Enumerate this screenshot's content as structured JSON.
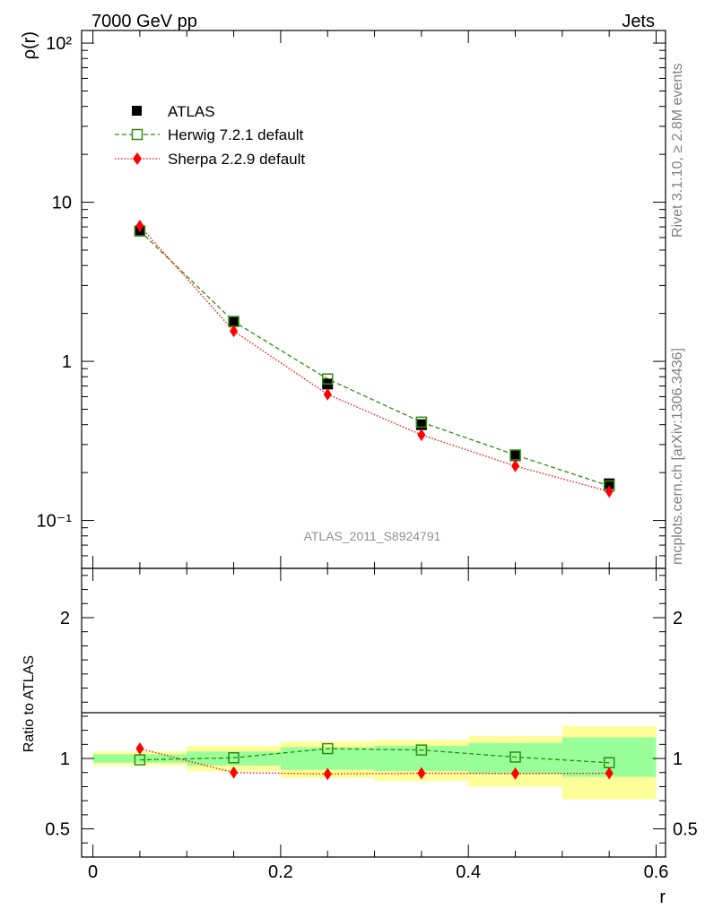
{
  "header": {
    "left": "7000 GeV pp",
    "right": "Jets"
  },
  "side_text": {
    "rivet": "Rivet 3.1.10, ≥ 2.8M events",
    "mcplots": "mcplots.cern.ch [arXiv:1306.3436]"
  },
  "watermark": "ATLAS_2011_S8924791",
  "colors": {
    "atlas": "#000000",
    "herwig": "#2e8b0e",
    "sherpa": "#ff0000",
    "band_outer": "#ffff99",
    "band_inner": "#99ff99"
  },
  "chart_data": [
    {
      "type": "scatter",
      "ylabel": "ρ(r)",
      "yscale": "log",
      "xlim": [
        -0.012,
        0.61
      ],
      "ylim": [
        0.05,
        120
      ],
      "yticks": [
        {
          "value": 0.1,
          "label": "10⁻¹"
        },
        {
          "value": 1,
          "label": "1"
        },
        {
          "value": 10,
          "label": "10"
        },
        {
          "value": 100,
          "label": "10²"
        }
      ],
      "legend": "top-left",
      "x": [
        0.05,
        0.15,
        0.25,
        0.35,
        0.45,
        0.55
      ],
      "series": [
        {
          "name": "ATLAS",
          "key": "atlas",
          "marker": "square-filled",
          "values": [
            6.6,
            1.78,
            0.72,
            0.4,
            0.255,
            0.17
          ]
        },
        {
          "name": "Herwig 7.2.1 default",
          "key": "herwig",
          "marker": "square-open",
          "line": "dashed",
          "values": [
            6.6,
            1.78,
            0.775,
            0.415,
            0.258,
            0.165
          ]
        },
        {
          "name": "Sherpa 2.2.9 default",
          "key": "sherpa",
          "marker": "diamond",
          "line": "dotted",
          "values": [
            7.1,
            1.55,
            0.62,
            0.345,
            0.22,
            0.152
          ]
        }
      ]
    },
    {
      "type": "scatter",
      "xlabel": "r",
      "ylabel": "Ratio to ATLAS",
      "xlim": [
        -0.012,
        0.61
      ],
      "ylim": [
        0.3,
        2.35
      ],
      "xticks": [
        {
          "value": 0,
          "label": "0"
        },
        {
          "value": 0.2,
          "label": "0.2"
        },
        {
          "value": 0.4,
          "label": "0.4"
        },
        {
          "value": 0.6,
          "label": "0.6"
        }
      ],
      "yticks": [
        {
          "value": 0.5,
          "label": "0.5"
        },
        {
          "value": 1,
          "label": "1"
        },
        {
          "value": 2,
          "label": "2"
        }
      ],
      "bins": [
        [
          0.0,
          0.1
        ],
        [
          0.1,
          0.2
        ],
        [
          0.2,
          0.3
        ],
        [
          0.3,
          0.4
        ],
        [
          0.4,
          0.5
        ],
        [
          0.5,
          0.6
        ]
      ],
      "band_outer": [
        [
          0.95,
          1.05
        ],
        [
          0.91,
          1.09
        ],
        [
          0.86,
          1.12
        ],
        [
          0.84,
          1.13
        ],
        [
          0.8,
          1.16
        ],
        [
          0.71,
          1.23
        ]
      ],
      "band_inner": [
        [
          0.97,
          1.03
        ],
        [
          0.95,
          1.05
        ],
        [
          0.92,
          1.08
        ],
        [
          0.91,
          1.09
        ],
        [
          0.89,
          1.11
        ],
        [
          0.87,
          1.15
        ]
      ],
      "x": [
        0.05,
        0.15,
        0.25,
        0.35,
        0.45,
        0.55
      ],
      "series": [
        {
          "name": "Herwig 7.2.1 default",
          "key": "herwig",
          "marker": "square-open",
          "line": "dashed",
          "values": [
            0.99,
            1.005,
            1.07,
            1.06,
            1.01,
            0.97
          ]
        },
        {
          "name": "Sherpa 2.2.9 default",
          "key": "sherpa",
          "marker": "diamond",
          "line": "dotted",
          "values": [
            1.07,
            0.9,
            0.89,
            0.895,
            0.893,
            0.895
          ]
        }
      ]
    }
  ]
}
